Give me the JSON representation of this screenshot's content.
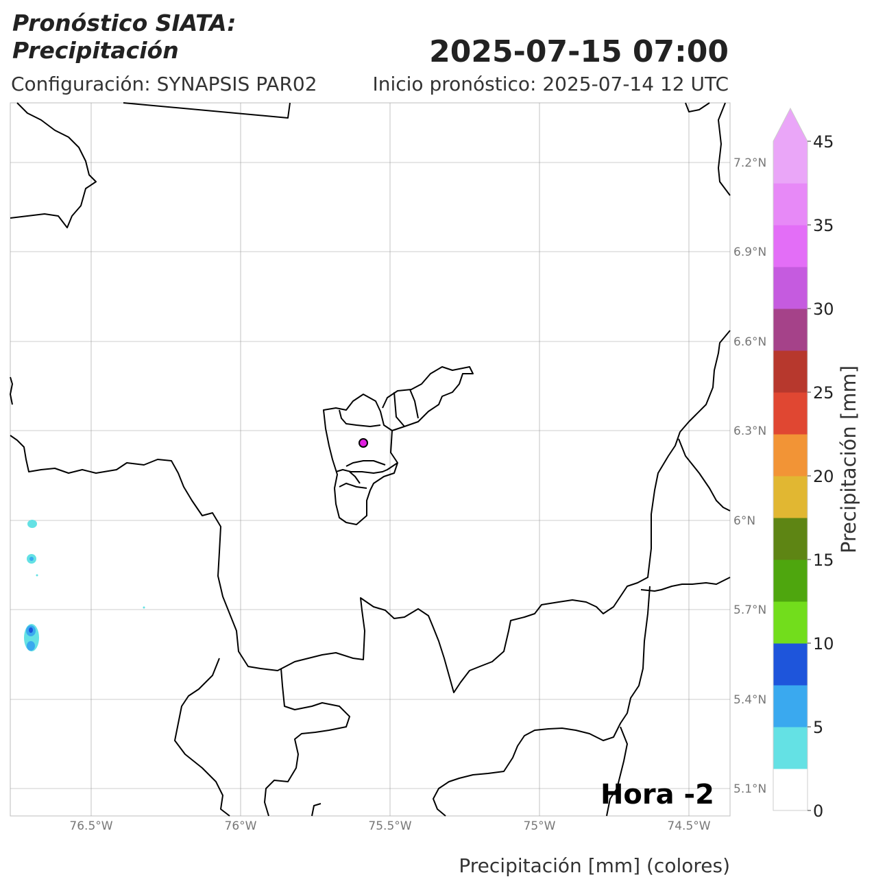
{
  "header": {
    "title_line1": "Pronóstico SIATA:",
    "title_line2": "Precipitación",
    "datetime": "2025-07-15 07:00",
    "configuration": "Configuración: SYNAPSIS PAR02",
    "forecast_start": "Inicio pronóstico: 2025-07-14 12 UTC"
  },
  "map": {
    "lat_ticks": [
      "7.2°N",
      "6.9°N",
      "6.6°N",
      "6.3°N",
      "6°N",
      "5.7°N",
      "5.4°N",
      "5.1°N"
    ],
    "lon_ticks": [
      "76.5°W",
      "76°W",
      "75.5°W",
      "75°W",
      "74.5°W"
    ],
    "hour_label": "Hora -2",
    "station_marker_color": "#e020e0"
  },
  "colorbar": {
    "label": "Precipitación [mm]",
    "tick_labels": [
      "0",
      "5",
      "10",
      "15",
      "20",
      "25",
      "30",
      "35",
      "45"
    ],
    "colors": [
      "#ffffff",
      "#64e1e4",
      "#3aa9ef",
      "#1e55db",
      "#72dd1c",
      "#4ea60e",
      "#5e8514",
      "#e1b732",
      "#f29436",
      "#e04732",
      "#b7382d",
      "#a54289",
      "#c55bdf",
      "#e36ef7",
      "#e789f7",
      "#eaa6f8"
    ]
  },
  "footer": {
    "xaxis_label": "Precipitación [mm] (colores)"
  }
}
